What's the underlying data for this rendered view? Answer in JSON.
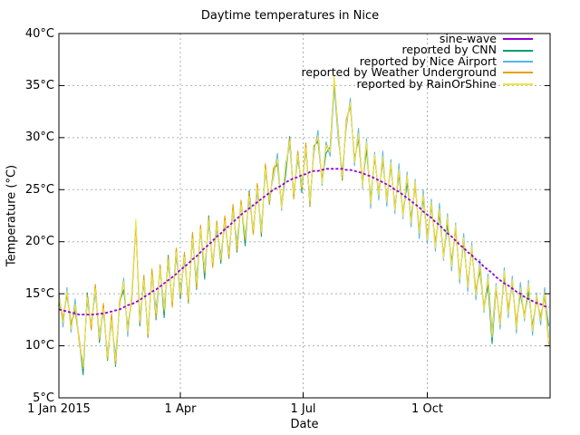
{
  "chart_data": {
    "type": "line",
    "title": "Daytime temperatures in Nice",
    "xlabel": "Date",
    "ylabel": "Temperature (°C)",
    "ylim": [
      5,
      40
    ],
    "xlim_days": [
      0,
      364
    ],
    "grid": true,
    "legend_position": "top-right",
    "background_color": "#ffffff",
    "axis_color": "#000000",
    "grid_color": "#b0b0b0",
    "yticks": [
      {
        "value": 5,
        "label": "5°C"
      },
      {
        "value": 10,
        "label": "10°C"
      },
      {
        "value": 15,
        "label": "15°C"
      },
      {
        "value": 20,
        "label": "20°C"
      },
      {
        "value": 25,
        "label": "25°C"
      },
      {
        "value": 30,
        "label": "30°C"
      },
      {
        "value": 35,
        "label": "35°C"
      },
      {
        "value": 40,
        "label": "40°C"
      }
    ],
    "xticks": [
      {
        "day": 0,
        "label": "1 Jan 2015"
      },
      {
        "day": 90,
        "label": "1 Apr"
      },
      {
        "day": 181,
        "label": "1 Jul"
      },
      {
        "day": 273,
        "label": "1 Oct"
      }
    ],
    "x_days": [
      0,
      3,
      6,
      9,
      12,
      15,
      18,
      21,
      24,
      27,
      30,
      33,
      36,
      39,
      42,
      45,
      48,
      51,
      54,
      57,
      60,
      63,
      66,
      69,
      72,
      75,
      78,
      81,
      84,
      87,
      90,
      93,
      96,
      99,
      102,
      105,
      108,
      111,
      114,
      117,
      120,
      123,
      126,
      129,
      132,
      135,
      138,
      141,
      144,
      147,
      150,
      153,
      156,
      159,
      162,
      165,
      168,
      171,
      174,
      177,
      180,
      183,
      186,
      189,
      192,
      195,
      198,
      201,
      204,
      207,
      210,
      213,
      216,
      219,
      222,
      225,
      228,
      231,
      234,
      237,
      240,
      243,
      246,
      249,
      252,
      255,
      258,
      261,
      264,
      267,
      270,
      273,
      276,
      279,
      282,
      285,
      288,
      291,
      294,
      297,
      300,
      303,
      306,
      309,
      312,
      315,
      318,
      321,
      324,
      327,
      330,
      333,
      336,
      339,
      342,
      345,
      348,
      351,
      354,
      357,
      360,
      363
    ],
    "sine_wave_params": {
      "mean": 20,
      "amplitude": 7,
      "min_day": 22,
      "period_days": 365
    },
    "series": [
      {
        "name": "sine-wave",
        "color": "#9400d3",
        "style": "dashed",
        "values": [
          13.5,
          13.4,
          13.3,
          13.2,
          13.1,
          13.0,
          13.0,
          13.0,
          13.0,
          13.0,
          13.1,
          13.1,
          13.2,
          13.3,
          13.4,
          13.5,
          13.7,
          13.9,
          14.0,
          14.2,
          14.4,
          14.7,
          14.9,
          15.2,
          15.4,
          15.7,
          16.0,
          16.3,
          16.6,
          16.9,
          17.3,
          17.6,
          17.9,
          18.3,
          18.6,
          19.0,
          19.4,
          19.7,
          20.1,
          20.5,
          20.8,
          21.2,
          21.5,
          21.9,
          22.2,
          22.6,
          22.9,
          23.2,
          23.5,
          23.8,
          24.1,
          24.4,
          24.7,
          25.0,
          25.2,
          25.4,
          25.7,
          25.9,
          26.1,
          26.2,
          26.4,
          26.5,
          26.7,
          26.8,
          26.8,
          26.9,
          27.0,
          27.0,
          27.0,
          27.0,
          27.0,
          26.9,
          26.9,
          26.8,
          26.7,
          26.6,
          26.4,
          26.3,
          26.1,
          25.9,
          25.7,
          25.5,
          25.3,
          25.0,
          24.8,
          24.5,
          24.2,
          23.9,
          23.6,
          23.3,
          22.9,
          22.6,
          22.3,
          21.9,
          21.6,
          21.2,
          20.8,
          20.5,
          20.1,
          19.7,
          19.4,
          19.0,
          18.7,
          18.3,
          18.0,
          17.6,
          17.3,
          17.0,
          16.6,
          16.3,
          16.0,
          15.8,
          15.5,
          15.2,
          15.0,
          14.7,
          14.5,
          14.3,
          14.1,
          14.0,
          13.8,
          13.7
        ]
      },
      {
        "name": "reported by CNN",
        "color": "#009e73",
        "style": "solid",
        "values": [
          14.3,
          12.5,
          14.9,
          12.0,
          13.4,
          10.6,
          7.2,
          15.1,
          11.7,
          15.8,
          10.3,
          13.9,
          8.6,
          12.9,
          8.0,
          14.1,
          15.4,
          11.8,
          14.5,
          21.9,
          11.9,
          16.6,
          10.8,
          17.2,
          12.5,
          17.6,
          12.7,
          18.7,
          13.9,
          19.3,
          14.5,
          18.8,
          14.1,
          20.7,
          15.4,
          21.4,
          16.4,
          22.5,
          17.7,
          21.9,
          17.9,
          22.3,
          18.4,
          23.4,
          19.0,
          23.8,
          19.6,
          24.9,
          20.9,
          25.5,
          20.5,
          27.3,
          23.6,
          26.9,
          27.4,
          23.4,
          26.4,
          30.1,
          24.3,
          28.6,
          24.7,
          29.3,
          23.4,
          29.2,
          29.6,
          25.8,
          28.5,
          29.1,
          35.4,
          30.6,
          25.9,
          31.7,
          33.0,
          28.0,
          29.8,
          25.5,
          28.8,
          24.1,
          28.1,
          24.7,
          27.7,
          24.1,
          27.2,
          23.4,
          26.4,
          22.6,
          25.6,
          22.3,
          25.5,
          21.1,
          24.1,
          20.5,
          23.4,
          19.8,
          22.6,
          18.6,
          21.6,
          18.1,
          21.3,
          16.7,
          19.9,
          15.9,
          19.2,
          15.2,
          17.2,
          13.6,
          15.8,
          10.2,
          15.5,
          12.3,
          16.7,
          13.3,
          16.0,
          12.0,
          15.0,
          12.8,
          15.2,
          11.9,
          14.6,
          12.7,
          14.7,
          11.9
        ]
      },
      {
        "name": "reported by Nice Airport",
        "color": "#56b4e9",
        "style": "solid",
        "values": [
          15.2,
          11.8,
          15.6,
          11.3,
          14.5,
          10.2,
          8.3,
          14.2,
          12.2,
          15.0,
          11.2,
          13.2,
          9.3,
          12.2,
          9.1,
          13.7,
          16.5,
          10.9,
          15.0,
          21.7,
          12.8,
          15.9,
          11.5,
          16.5,
          13.6,
          17.2,
          13.8,
          17.8,
          14.4,
          18.5,
          15.4,
          18.1,
          14.8,
          20.0,
          16.5,
          21.0,
          17.5,
          21.6,
          18.2,
          21.1,
          18.8,
          21.6,
          19.1,
          22.7,
          20.1,
          23.4,
          20.7,
          24.0,
          21.4,
          24.7,
          21.4,
          26.6,
          24.3,
          26.2,
          28.5,
          23.0,
          27.5,
          29.2,
          24.8,
          27.8,
          25.6,
          28.6,
          24.1,
          28.5,
          30.7,
          25.4,
          29.6,
          28.2,
          35.0,
          29.8,
          26.8,
          31.0,
          33.8,
          27.3,
          30.9,
          25.1,
          29.9,
          23.2,
          28.6,
          24.0,
          28.7,
          23.4,
          27.9,
          22.7,
          27.5,
          22.2,
          26.7,
          21.4,
          26.0,
          20.3,
          25.0,
          19.8,
          24.1,
          19.1,
          23.7,
          18.2,
          22.7,
          17.2,
          21.8,
          16.0,
          20.8,
          15.2,
          19.9,
          14.4,
          18.3,
          13.2,
          16.9,
          11.3,
          16.0,
          11.6,
          17.5,
          12.7,
          16.7,
          11.2,
          16.1,
          12.4,
          16.3,
          11.0,
          15.1,
          12.0,
          15.6,
          10.8
        ]
      },
      {
        "name": "reported by Weather Underground",
        "color": "#e69f00",
        "style": "solid",
        "values": [
          14.6,
          12.7,
          15.0,
          12.2,
          13.6,
          10.8,
          7.8,
          14.9,
          11.5,
          15.9,
          10.6,
          14.1,
          8.7,
          13.1,
          8.2,
          14.3,
          16.0,
          11.6,
          14.3,
          21.8,
          12.2,
          16.8,
          10.9,
          17.4,
          12.7,
          17.8,
          13.3,
          18.5,
          13.7,
          19.4,
          14.8,
          19.0,
          14.2,
          20.9,
          15.6,
          21.6,
          17.0,
          22.3,
          17.5,
          22.0,
          18.2,
          22.5,
          18.5,
          23.6,
          19.2,
          24.0,
          20.2,
          24.7,
          20.7,
          25.6,
          20.8,
          27.5,
          23.7,
          27.1,
          27.6,
          23.6,
          27.0,
          29.9,
          24.1,
          28.7,
          25.0,
          29.5,
          23.5,
          29.1,
          29.8,
          26.0,
          29.1,
          28.9,
          35.7,
          30.7,
          26.0,
          31.8,
          33.1,
          27.9,
          30.0,
          25.7,
          29.4,
          23.9,
          28.1,
          24.8,
          27.8,
          24.2,
          27.3,
          23.3,
          26.6,
          22.8,
          26.2,
          22.1,
          25.3,
          21.2,
          24.4,
          20.6,
          23.5,
          20.0,
          22.8,
          18.8,
          22.1,
          17.9,
          21.1,
          16.8,
          20.0,
          16.0,
          19.3,
          15.4,
          17.4,
          13.8,
          16.4,
          11.1,
          15.3,
          12.5,
          16.9,
          13.6,
          16.1,
          12.2,
          15.2,
          13.0,
          15.8,
          11.7,
          14.4,
          12.9,
          14.7,
          10.1
        ]
      },
      {
        "name": "reported by RainOrShine",
        "color": "#f0e442",
        "style": "solid",
        "values": [
          14.8,
          12.2,
          15.3,
          11.6,
          14.0,
          10.4,
          8.0,
          14.6,
          12.0,
          15.5,
          10.8,
          13.6,
          9.0,
          12.5,
          8.6,
          13.9,
          16.2,
          11.3,
          14.8,
          22.2,
          12.4,
          16.3,
          11.2,
          16.8,
          13.1,
          17.4,
          13.5,
          18.2,
          14.2,
          19.0,
          15.0,
          18.5,
          14.5,
          20.3,
          16.0,
          21.2,
          17.2,
          22.0,
          18.0,
          21.6,
          18.4,
          22.0,
          18.8,
          23.0,
          19.6,
          23.6,
          20.4,
          24.4,
          21.2,
          25.2,
          21.0,
          27.0,
          24.0,
          26.5,
          28.0,
          23.2,
          27.2,
          29.6,
          24.6,
          28.3,
          25.2,
          29.0,
          23.8,
          28.8,
          30.2,
          25.6,
          29.3,
          28.6,
          36.0,
          30.3,
          26.4,
          31.4,
          33.4,
          27.6,
          30.4,
          25.3,
          29.6,
          23.6,
          28.4,
          24.4,
          28.2,
          23.8,
          27.6,
          23.0,
          27.0,
          22.4,
          26.4,
          21.8,
          25.8,
          20.8,
          24.6,
          20.2,
          23.8,
          19.4,
          23.2,
          18.4,
          22.4,
          17.6,
          21.6,
          16.4,
          20.4,
          15.6,
          19.6,
          14.8,
          17.8,
          13.4,
          16.6,
          10.8,
          15.8,
          12.0,
          17.2,
          13.0,
          16.4,
          11.6,
          15.6,
          12.6,
          16.0,
          11.4,
          14.9,
          12.4,
          15.2,
          10.4
        ]
      }
    ]
  }
}
